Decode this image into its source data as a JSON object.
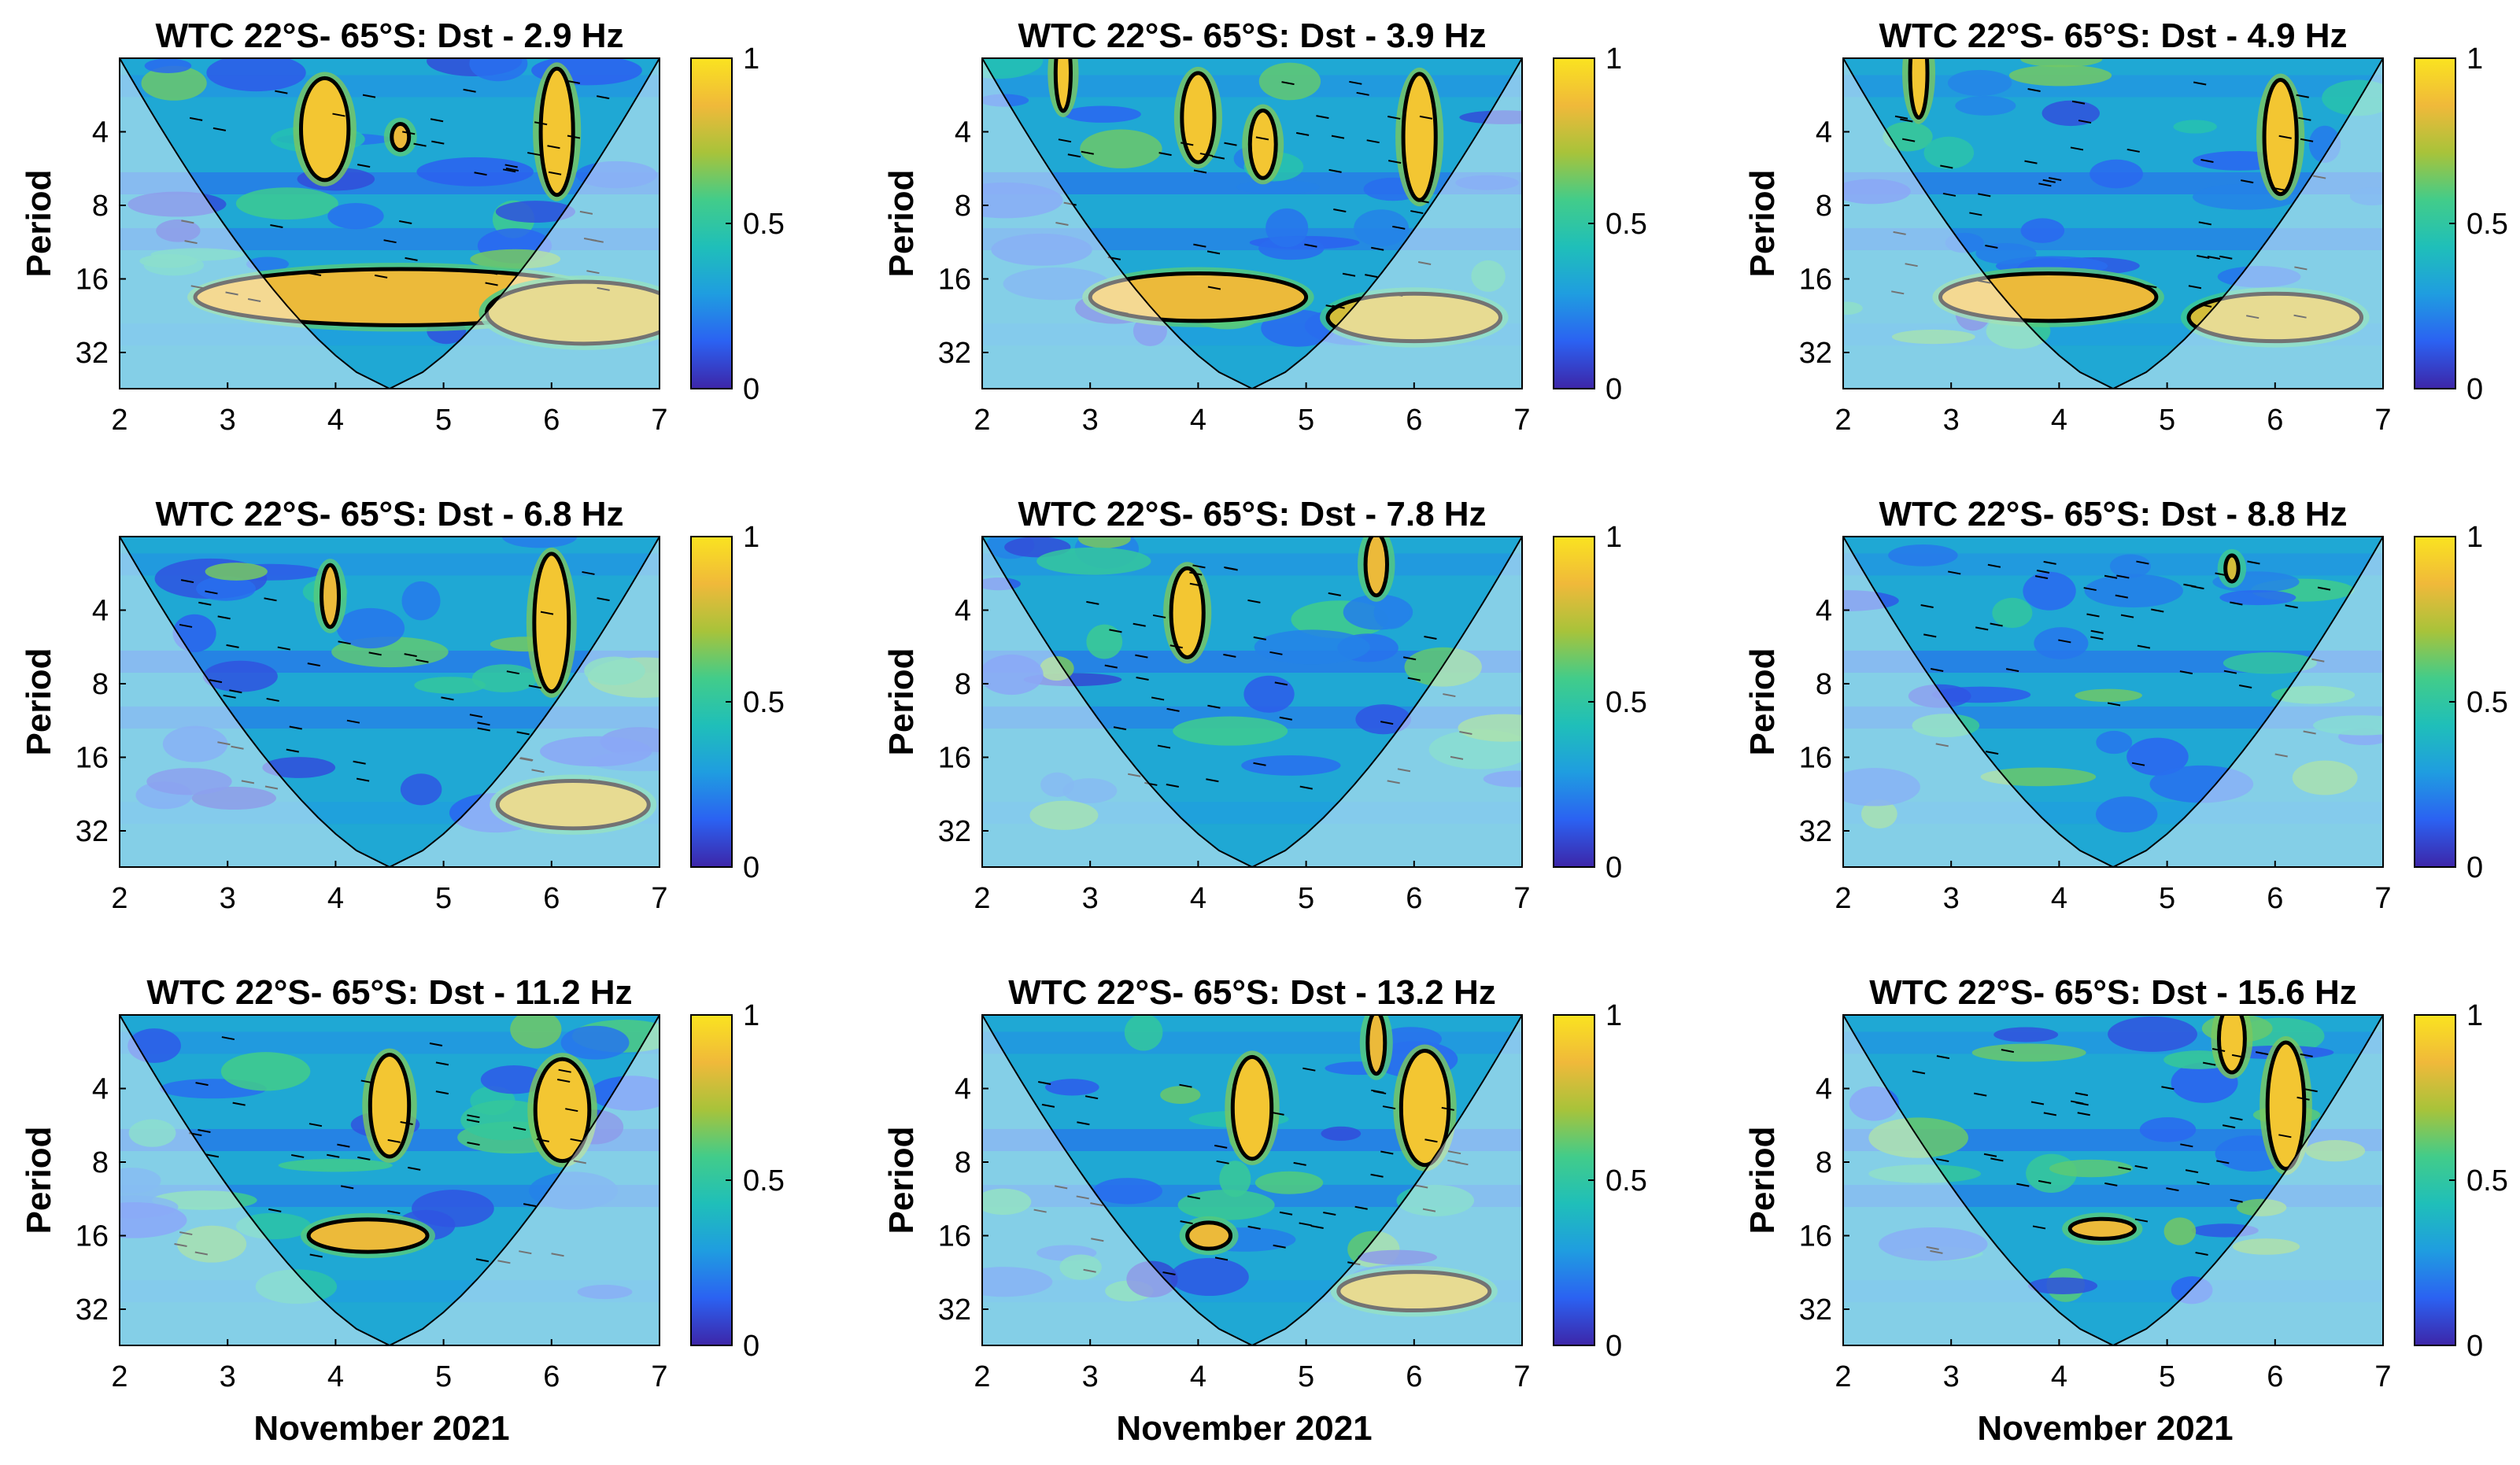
{
  "chart_data": {
    "type": "heatmap",
    "description_kind": "wavelet coherence grid",
    "layout": "3x3",
    "xlabel": "November 2021",
    "ylabel": "Period",
    "x_ticks": [
      "2",
      "3",
      "4",
      "5",
      "6",
      "7"
    ],
    "y_ticks": [
      "4",
      "8",
      "16",
      "32"
    ],
    "colorbar_ticks": [
      "0",
      "0.5",
      "1"
    ],
    "colorbar_range": [
      0,
      1
    ],
    "colormap_stops": [
      "#3d26a8",
      "#2b62f2",
      "#1f9de0",
      "#1fbfb9",
      "#42cc8a",
      "#a8c33a",
      "#f0b93a",
      "#fae320"
    ],
    "panels": [
      {
        "title": "WTC 22°S- 65°S: Dst - 2.9 Hz",
        "regions": [
          {
            "x": 3.9,
            "p": 3.9,
            "rx": 0.22,
            "rp": 0.35,
            "v": 0.9
          },
          {
            "x": 6.05,
            "p": 4.0,
            "rx": 0.15,
            "rp": 0.45,
            "v": 0.9
          },
          {
            "x": 4.6,
            "p": 4.2,
            "rx": 0.08,
            "rp": 0.08,
            "v": 0.85
          },
          {
            "x": 4.6,
            "p": 19,
            "rx": 1.9,
            "rp": 0.18,
            "v": 0.85
          },
          {
            "x": 6.3,
            "p": 22,
            "rx": 0.9,
            "rp": 0.2,
            "v": 0.8
          }
        ]
      },
      {
        "title": "WTC 22°S- 65°S: Dst - 3.9 Hz",
        "regions": [
          {
            "x": 4.0,
            "p": 3.5,
            "rx": 0.15,
            "rp": 0.3,
            "v": 0.9
          },
          {
            "x": 4.6,
            "p": 4.5,
            "rx": 0.12,
            "rp": 0.22,
            "v": 0.9
          },
          {
            "x": 6.05,
            "p": 4.2,
            "rx": 0.15,
            "rp": 0.45,
            "v": 0.9
          },
          {
            "x": 2.75,
            "p": 2.3,
            "rx": 0.07,
            "rp": 0.25,
            "v": 0.9
          },
          {
            "x": 4.0,
            "p": 19,
            "rx": 1.0,
            "rp": 0.15,
            "v": 0.85
          },
          {
            "x": 6.0,
            "p": 23,
            "rx": 0.8,
            "rp": 0.15,
            "v": 0.8
          }
        ]
      },
      {
        "title": "WTC 22°S- 65°S: Dst - 4.9 Hz",
        "regions": [
          {
            "x": 2.7,
            "p": 2.3,
            "rx": 0.08,
            "rp": 0.3,
            "v": 0.9
          },
          {
            "x": 6.05,
            "p": 4.2,
            "rx": 0.15,
            "rp": 0.4,
            "v": 0.9
          },
          {
            "x": 3.9,
            "p": 19,
            "rx": 1.0,
            "rp": 0.15,
            "v": 0.85
          },
          {
            "x": 6.0,
            "p": 23,
            "rx": 0.8,
            "rp": 0.15,
            "v": 0.8
          }
        ]
      },
      {
        "title": "WTC 22°S- 65°S: Dst - 6.8 Hz",
        "regions": [
          {
            "x": 3.95,
            "p": 3.5,
            "rx": 0.08,
            "rp": 0.2,
            "v": 0.85
          },
          {
            "x": 6.0,
            "p": 4.5,
            "rx": 0.16,
            "rp": 0.5,
            "v": 0.9
          },
          {
            "x": 6.2,
            "p": 25,
            "rx": 0.7,
            "rp": 0.15,
            "v": 0.8
          }
        ]
      },
      {
        "title": "WTC 22°S- 65°S: Dst - 7.8 Hz",
        "regions": [
          {
            "x": 3.9,
            "p": 4.1,
            "rx": 0.15,
            "rp": 0.3,
            "v": 0.9
          },
          {
            "x": 5.65,
            "p": 2.6,
            "rx": 0.1,
            "rp": 0.2,
            "v": 0.85
          }
        ]
      },
      {
        "title": "WTC 22°S- 65°S: Dst - 8.8 Hz",
        "regions": [
          {
            "x": 5.6,
            "p": 2.7,
            "rx": 0.06,
            "rp": 0.08,
            "v": 0.8
          }
        ]
      },
      {
        "title": "WTC 22°S- 65°S: Dst - 11.2 Hz",
        "regions": [
          {
            "x": 4.5,
            "p": 4.7,
            "rx": 0.18,
            "rp": 0.35,
            "v": 0.9
          },
          {
            "x": 6.1,
            "p": 4.9,
            "rx": 0.25,
            "rp": 0.35,
            "v": 0.9
          },
          {
            "x": 4.3,
            "p": 16,
            "rx": 0.55,
            "rp": 0.1,
            "v": 0.85
          }
        ]
      },
      {
        "title": "WTC 22°S- 65°S: Dst - 13.2 Hz",
        "regions": [
          {
            "x": 4.5,
            "p": 4.8,
            "rx": 0.18,
            "rp": 0.35,
            "v": 0.9
          },
          {
            "x": 6.1,
            "p": 4.8,
            "rx": 0.22,
            "rp": 0.4,
            "v": 0.9
          },
          {
            "x": 5.65,
            "p": 2.6,
            "rx": 0.08,
            "rp": 0.2,
            "v": 0.85
          },
          {
            "x": 4.1,
            "p": 16,
            "rx": 0.2,
            "rp": 0.08,
            "v": 0.85
          },
          {
            "x": 6.0,
            "p": 27,
            "rx": 0.7,
            "rp": 0.12,
            "v": 0.8
          }
        ]
      },
      {
        "title": "WTC 22°S- 65°S: Dst - 15.6 Hz",
        "regions": [
          {
            "x": 5.6,
            "p": 2.5,
            "rx": 0.12,
            "rp": 0.22,
            "v": 0.9
          },
          {
            "x": 6.1,
            "p": 4.7,
            "rx": 0.17,
            "rp": 0.45,
            "v": 0.9
          },
          {
            "x": 4.4,
            "p": 15,
            "rx": 0.3,
            "rp": 0.06,
            "v": 0.85
          }
        ]
      }
    ]
  }
}
